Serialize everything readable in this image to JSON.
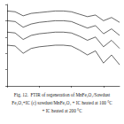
{
  "chart_data": {
    "type": "line",
    "caption": [
      "Fig. 12.  FTIR of regeneration of MnFe₂O₄/Sawdust",
      "Fe₂O₄+IC (c) sawdust/MnFe₂O₄ + IC heated at 100 °C",
      "+ IC heated at 200 °C"
    ],
    "x": [
      4000,
      3750,
      3500,
      3250,
      3000,
      2750,
      2500,
      2250,
      2000,
      1750,
      1500,
      1250,
      1000,
      750,
      500
    ],
    "series": [
      {
        "color": "#000000",
        "values": [
          92,
          91,
          86,
          89,
          90,
          91,
          92,
          92,
          91,
          88,
          85,
          87,
          80,
          84,
          78
        ]
      },
      {
        "color": "#000000",
        "values": [
          80,
          79,
          72,
          76,
          78,
          79,
          80,
          80,
          79,
          75,
          71,
          74,
          64,
          70,
          62
        ]
      },
      {
        "color": "#000000",
        "values": [
          66,
          65,
          57,
          62,
          64,
          65,
          66,
          66,
          65,
          61,
          56,
          60,
          48,
          56,
          46
        ]
      },
      {
        "color": "#000000",
        "values": [
          50,
          49,
          40,
          46,
          48,
          49,
          50,
          50,
          49,
          44,
          38,
          43,
          28,
          38,
          26
        ]
      }
    ],
    "xlim": [
      4000,
      500
    ],
    "xticks": [
      4000,
      3000,
      2000,
      1000
    ],
    "ylim": [
      0,
      100
    ],
    "yticks": [
      0,
      20,
      40,
      60,
      80,
      100
    ],
    "grid": false,
    "tick_labels": false
  }
}
